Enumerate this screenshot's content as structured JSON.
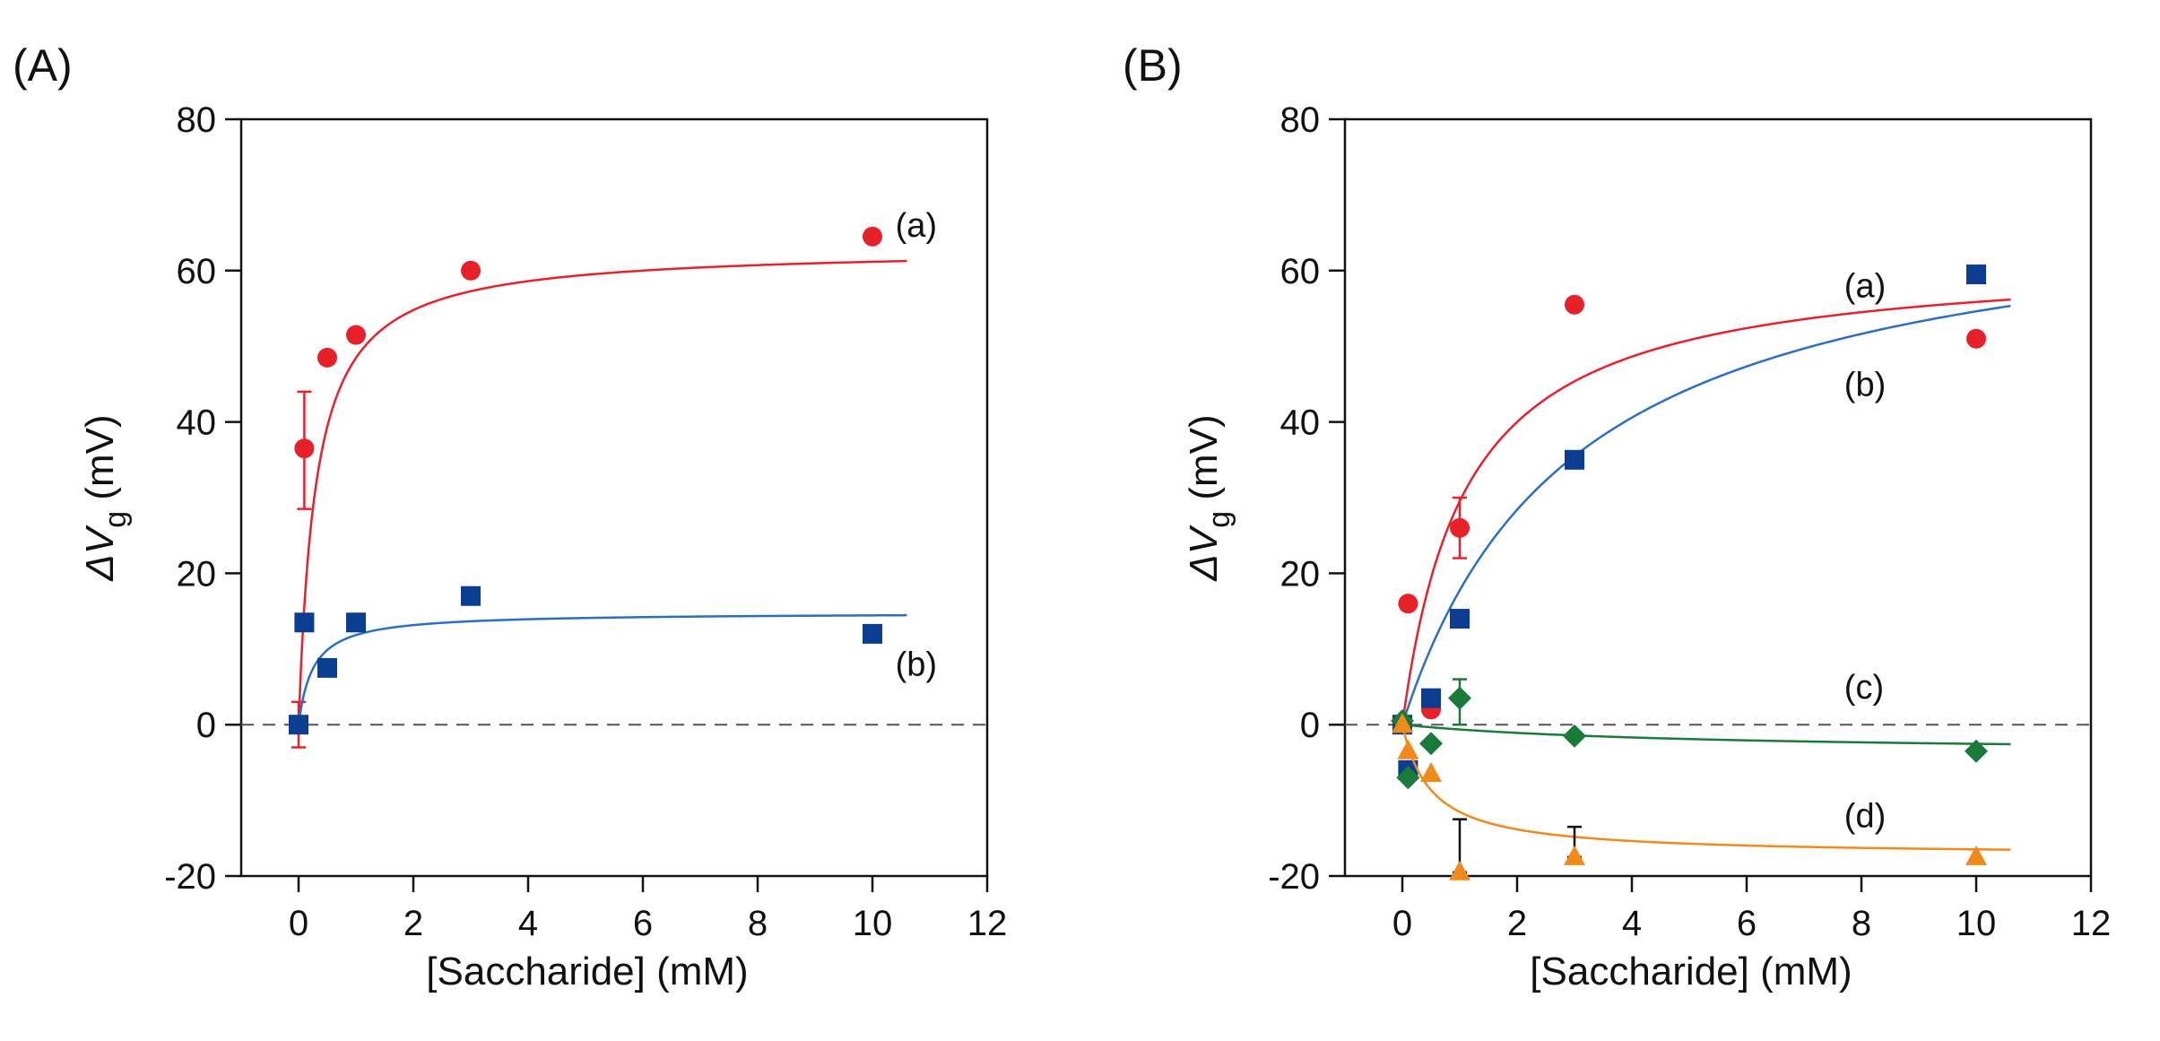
{
  "chart_data": [
    {
      "type": "scatter",
      "panel_label": "(A)",
      "xlabel": "[Saccharide] (mM)",
      "ylabel": {
        "delta": "Δ",
        "var": "V",
        "sub": "g",
        "unit": " (mV)"
      },
      "xlim": [
        -1,
        12
      ],
      "ylim": [
        -20,
        80
      ],
      "xticks": [
        0,
        2,
        4,
        6,
        8,
        10,
        12
      ],
      "yticks": [
        -20,
        0,
        20,
        40,
        60,
        80
      ],
      "zero_line": "dashed",
      "series": [
        {
          "name": "(a)",
          "color": "#e8202a",
          "marker": "circle",
          "x": [
            0,
            0.1,
            0.5,
            1,
            3,
            10
          ],
          "y": [
            0,
            36.5,
            48.5,
            51.5,
            60,
            64.5
          ],
          "errors": [
            {
              "x": 0,
              "low": -3,
              "high": 3
            },
            {
              "x": 0.1,
              "low": 28.5,
              "high": 44
            }
          ],
          "fit": {
            "model": "langmuir",
            "vmax": 63,
            "k": 0.3
          },
          "label_pos": [
            10.4,
            66
          ]
        },
        {
          "name": "(b)",
          "color": "#0b3d91",
          "marker": "square",
          "x": [
            0,
            0.1,
            0.5,
            1,
            3,
            10
          ],
          "y": [
            0,
            13.5,
            7.5,
            13.5,
            17,
            12
          ],
          "errors": [],
          "fit": {
            "model": "langmuir",
            "vmax": 14.8,
            "k": 0.25
          },
          "fit_color": "#2a6fc0",
          "label_pos": [
            10.4,
            8
          ]
        }
      ]
    },
    {
      "type": "scatter",
      "panel_label": "(B)",
      "xlabel": "[Saccharide] (mM)",
      "ylabel": {
        "delta": "Δ",
        "var": "V",
        "sub": "g",
        "unit": " (mV)"
      },
      "xlim": [
        -1,
        12
      ],
      "ylim": [
        -20,
        80
      ],
      "xticks": [
        0,
        2,
        4,
        6,
        8,
        10,
        12
      ],
      "yticks": [
        -20,
        0,
        20,
        40,
        60,
        80
      ],
      "zero_line": "dashed",
      "series": [
        {
          "name": "(a)",
          "color": "#e8202a",
          "marker": "circle",
          "x": [
            0,
            0.1,
            0.5,
            1,
            3,
            10
          ],
          "y": [
            0,
            16,
            2,
            26,
            55.5,
            51
          ],
          "errors": [
            {
              "x": 1,
              "low": 22,
              "high": 30
            }
          ],
          "fit": {
            "model": "langmuir",
            "vmax": 62,
            "k": 1.1
          },
          "label_pos": [
            7.7,
            58
          ]
        },
        {
          "name": "(b)",
          "color": "#0b3d91",
          "marker": "square",
          "x": [
            0,
            0.1,
            0.5,
            1,
            3,
            10
          ],
          "y": [
            0,
            -6,
            3.5,
            14,
            35,
            59.5
          ],
          "errors": [],
          "fit": {
            "model": "langmuir",
            "vmax": 71,
            "k": 3
          },
          "fit_color": "#2a6fc0",
          "label_pos": [
            7.7,
            45
          ]
        },
        {
          "name": "(c)",
          "color": "#1a7a3a",
          "marker": "diamond",
          "x": [
            0,
            0.1,
            0.5,
            1,
            3,
            10
          ],
          "y": [
            0.5,
            -7,
            -2.5,
            3.5,
            -1.5,
            -3.5
          ],
          "errors": [
            {
              "x": 1,
              "low": 0,
              "high": 6
            }
          ],
          "fit": {
            "model": "langmuir",
            "vmax": -3.8,
            "k": 5
          },
          "label_pos": [
            7.7,
            5
          ]
        },
        {
          "name": "(d)",
          "color": "#f08a1c",
          "marker": "triangle",
          "x": [
            0,
            0.1,
            0.5,
            1,
            3,
            10
          ],
          "y": [
            0,
            -3.5,
            -6.5,
            -19.5,
            -17.5,
            -17.5
          ],
          "errors": [
            {
              "x": 1,
              "low": -19.5,
              "high": -12.5,
              "color": "#111111"
            },
            {
              "x": 3,
              "low": -17.5,
              "high": -13.5,
              "color": "#111111"
            }
          ],
          "fit": {
            "model": "langmuir",
            "vmax": -17.3,
            "k": 0.5
          },
          "label_pos": [
            7.7,
            -12
          ]
        }
      ]
    }
  ]
}
